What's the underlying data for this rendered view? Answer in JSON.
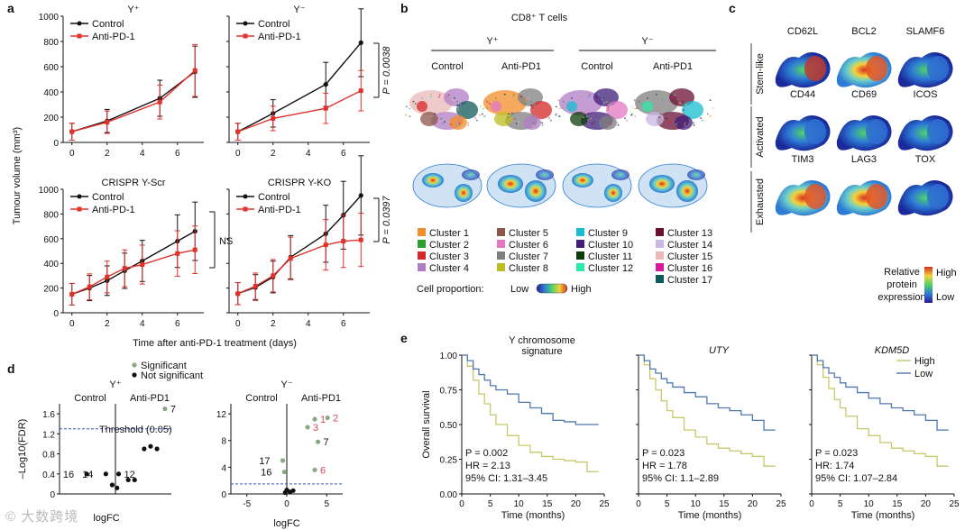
{
  "figure": {
    "panel_labels": [
      "a",
      "b",
      "c",
      "d",
      "e"
    ],
    "panel_a": {
      "ylabel": "Tumour volume (mm³)",
      "xlabel": "Time after anti-PD-1 treatment (days)",
      "series_names": [
        "Control",
        "Anti-PD-1"
      ],
      "colors": {
        "control": "#111111",
        "anti": "#e0312b"
      }
    },
    "panel_b": {
      "title": "CD8⁺ T cells",
      "group_yplus": "Y⁺",
      "group_yminus": "Y⁻",
      "col_labels": [
        "Control",
        "Anti-PD1",
        "Control",
        "Anti-PD1"
      ],
      "clusters": [
        {
          "name": "Cluster 1",
          "color": "#f28e2b"
        },
        {
          "name": "Cluster 2",
          "color": "#2ca02c"
        },
        {
          "name": "Cluster 3",
          "color": "#d62728"
        },
        {
          "name": "Cluster 4",
          "color": "#b07cc6"
        },
        {
          "name": "Cluster 5",
          "color": "#8c564b"
        },
        {
          "name": "Cluster 6",
          "color": "#e377c2"
        },
        {
          "name": "Cluster 7",
          "color": "#7f7f7f"
        },
        {
          "name": "Cluster 8",
          "color": "#bcbd22"
        },
        {
          "name": "Cluster 9",
          "color": "#17becf"
        },
        {
          "name": "Cluster 10",
          "color": "#3f1d7a"
        },
        {
          "name": "Cluster 11",
          "color": "#0b3d0b"
        },
        {
          "name": "Cluster 12",
          "color": "#2ee8a8"
        },
        {
          "name": "Cluster 13",
          "color": "#6b1033"
        },
        {
          "name": "Cluster 14",
          "color": "#c9b6e4"
        },
        {
          "name": "Cluster 15",
          "color": "#e9b8b8"
        },
        {
          "name": "Cluster 16",
          "color": "#d6199a"
        },
        {
          "name": "Cluster 17",
          "color": "#0f5a5a"
        }
      ],
      "proportion_label": "Cell proportion:",
      "low": "Low",
      "high": "High"
    },
    "panel_c": {
      "rows": [
        {
          "label": "Stem-like",
          "markers": [
            "CD62L",
            "BCL2",
            "SLAMF6"
          ]
        },
        {
          "label": "Activated",
          "markers": [
            "CD44",
            "CD69",
            "ICOS"
          ]
        },
        {
          "label": "Exhausted",
          "markers": [
            "TIM3",
            "LAG3",
            "TOX"
          ]
        }
      ],
      "legend_title": [
        "Relative",
        "protein",
        "expression"
      ],
      "high": "High",
      "low": "Low"
    },
    "panel_d": {
      "legend_sig": "Significant",
      "legend_nonsig": "Not significant",
      "ylabel_prefix": "–Log",
      "ylabel_sub": "10",
      "ylabel_suffix": "(FDR)",
      "xlabel": "logFC",
      "threshold_label": "Threshold (0.05)",
      "control": "Control",
      "anti": "Anti-PD1"
    },
    "panel_e": {
      "ylabel": "Overall survival",
      "xlabel": "Time (months)",
      "legend_high": "High",
      "legend_low": "Low",
      "colors": {
        "high": "#c8c86a",
        "low": "#4f78b0"
      }
    }
  },
  "chart_data": [
    {
      "id": "a-yplus",
      "type": "line",
      "title": "Y⁺",
      "x": [
        0,
        2,
        5,
        7
      ],
      "series": [
        {
          "name": "Control",
          "values": [
            85,
            170,
            350,
            560
          ]
        },
        {
          "name": "Anti-PD-1",
          "values": [
            85,
            160,
            320,
            570
          ]
        }
      ],
      "xlim": [
        -0.5,
        7.5
      ],
      "ylim": [
        0,
        1000
      ],
      "yticks": [
        0,
        200,
        400,
        600,
        800,
        1000
      ],
      "xticks": [
        0,
        2,
        4,
        6
      ]
    },
    {
      "id": "a-yminus",
      "type": "line",
      "title": "Y⁻",
      "x": [
        0,
        2,
        5,
        7
      ],
      "series": [
        {
          "name": "Control",
          "values": [
            85,
            230,
            460,
            790
          ]
        },
        {
          "name": "Anti-PD-1",
          "values": [
            85,
            190,
            270,
            410
          ]
        }
      ],
      "xlim": [
        -0.5,
        7.5
      ],
      "ylim": [
        0,
        1000
      ],
      "yticks": [],
      "xticks": [
        0,
        2,
        4,
        6
      ],
      "annotation": "P = 0.0038"
    },
    {
      "id": "a-scr",
      "type": "line",
      "title": "CRISPR Y-Scr",
      "x": [
        0,
        1,
        2,
        3,
        4,
        6,
        7
      ],
      "series": [
        {
          "name": "Control",
          "values": [
            150,
            200,
            260,
            340,
            420,
            580,
            660
          ]
        },
        {
          "name": "Anti-PD-1",
          "values": [
            150,
            210,
            290,
            360,
            390,
            480,
            510
          ]
        }
      ],
      "xlim": [
        -0.5,
        7.5
      ],
      "ylim": [
        0,
        1000
      ],
      "yticks": [
        0,
        200,
        400,
        600,
        800,
        1000
      ],
      "xticks": [
        0,
        2,
        4,
        6
      ],
      "annotation": "NS"
    },
    {
      "id": "a-ko",
      "type": "line",
      "title": "CRISPR Y-KO",
      "x": [
        0,
        1,
        2,
        3,
        5,
        6,
        7
      ],
      "series": [
        {
          "name": "Control",
          "values": [
            155,
            205,
            290,
            450,
            640,
            790,
            950
          ]
        },
        {
          "name": "Anti-PD-1",
          "values": [
            155,
            215,
            300,
            440,
            550,
            580,
            590
          ]
        }
      ],
      "xlim": [
        -0.5,
        7.5
      ],
      "ylim": [
        0,
        1000
      ],
      "yticks": [],
      "xticks": [
        0,
        2,
        4,
        6
      ],
      "annotation": "P = 0.0397"
    },
    {
      "id": "d-yplus",
      "type": "scatter",
      "title": "Y⁺",
      "ylim": [
        0,
        1.8
      ],
      "yticks": [
        0,
        0.4,
        0.8,
        1.2,
        1.6
      ],
      "points": [
        {
          "x": -1.8,
          "y": 0.4,
          "label": "16"
        },
        {
          "x": -0.6,
          "y": 0.4,
          "label": "14"
        },
        {
          "x": 0.2,
          "y": 0.4,
          "label": "12"
        },
        {
          "x": 0.8,
          "y": 0.28
        },
        {
          "x": 1.2,
          "y": 0.28
        },
        {
          "x": -0.2,
          "y": 0.18
        },
        {
          "x": 0.1,
          "y": 0.12
        },
        {
          "x": 1.8,
          "y": 0.9
        },
        {
          "x": 2.2,
          "y": 0.95
        },
        {
          "x": 2.6,
          "y": 0.9
        },
        {
          "x": 3.1,
          "y": 1.7,
          "label": "7",
          "significant": true
        }
      ],
      "threshold": 1.3
    },
    {
      "id": "d-yminus",
      "type": "scatter",
      "title": "Y⁻",
      "xlim": [
        -7,
        7
      ],
      "ylim": [
        0,
        13.5
      ],
      "xticks": [
        -5,
        0,
        5
      ],
      "yticks": [
        0,
        4,
        8,
        12
      ],
      "points": [
        {
          "x": 3.5,
          "y": 11.2,
          "label": "1",
          "significant": true
        },
        {
          "x": 5.1,
          "y": 11.4,
          "label": "2",
          "significant": true
        },
        {
          "x": 2.6,
          "y": 10,
          "label": "3",
          "significant": true
        },
        {
          "x": 3.9,
          "y": 7.8,
          "label": "7",
          "significant": true
        },
        {
          "x": -0.5,
          "y": 5,
          "label": "17",
          "significant": true
        },
        {
          "x": -0.3,
          "y": 3.3,
          "label": "16",
          "significant": true
        },
        {
          "x": 3.5,
          "y": 3.6,
          "label": "6",
          "significant": true
        },
        {
          "x": 0,
          "y": 0.6
        },
        {
          "x": 0.4,
          "y": 0.3
        },
        {
          "x": -0.2,
          "y": 0.2
        },
        {
          "x": 0.8,
          "y": 0.5
        }
      ],
      "threshold": 1.5
    },
    {
      "id": "e-ysig",
      "type": "line",
      "title": "Y chromosome signature",
      "xlim": [
        0,
        25
      ],
      "ylim": [
        0,
        1
      ],
      "xticks": [
        0,
        5,
        10,
        15,
        20,
        25
      ],
      "yticks": [
        0,
        0.25,
        0.5,
        0.75,
        1
      ],
      "stats": [
        "P = 0.002",
        "HR = 2.13",
        "95% CI: 1.31–3.45"
      ],
      "series": [
        {
          "name": "High",
          "x": [
            0,
            1,
            2,
            3,
            4,
            5,
            6,
            8,
            10,
            12,
            14,
            16,
            18,
            20,
            22,
            24
          ],
          "values": [
            1,
            0.92,
            0.82,
            0.72,
            0.65,
            0.57,
            0.5,
            0.42,
            0.35,
            0.3,
            0.27,
            0.25,
            0.24,
            0.23,
            0.16,
            0.16
          ]
        },
        {
          "name": "Low",
          "x": [
            0,
            1,
            2,
            3,
            4,
            5,
            6,
            8,
            10,
            12,
            14,
            16,
            18,
            20,
            22,
            24
          ],
          "values": [
            1,
            0.96,
            0.9,
            0.86,
            0.82,
            0.78,
            0.75,
            0.72,
            0.66,
            0.62,
            0.58,
            0.53,
            0.52,
            0.5,
            0.5,
            0.5
          ]
        }
      ]
    },
    {
      "id": "e-uty",
      "type": "line",
      "title": "UTY",
      "xlim": [
        0,
        25
      ],
      "ylim": [
        0,
        1
      ],
      "xticks": [
        0,
        5,
        10,
        15,
        20,
        25
      ],
      "stats": [
        "P = 0.023",
        "HR = 1.78",
        "95% CI: 1.1–2.89"
      ],
      "series": [
        {
          "name": "High",
          "x": [
            0,
            1,
            2,
            3,
            4,
            5,
            6,
            8,
            10,
            12,
            14,
            16,
            18,
            20,
            22,
            24
          ],
          "values": [
            1,
            0.93,
            0.83,
            0.75,
            0.67,
            0.6,
            0.55,
            0.46,
            0.41,
            0.36,
            0.33,
            0.31,
            0.29,
            0.27,
            0.2,
            0.2
          ]
        },
        {
          "name": "Low",
          "x": [
            0,
            1,
            2,
            3,
            4,
            5,
            6,
            8,
            10,
            12,
            14,
            16,
            18,
            20,
            22,
            24
          ],
          "values": [
            1,
            0.96,
            0.9,
            0.87,
            0.83,
            0.8,
            0.77,
            0.73,
            0.7,
            0.65,
            0.62,
            0.6,
            0.57,
            0.53,
            0.46,
            0.46
          ]
        }
      ]
    },
    {
      "id": "e-kdm5d",
      "type": "line",
      "title": "KDM5D",
      "xlim": [
        0,
        25
      ],
      "ylim": [
        0,
        1
      ],
      "xticks": [
        0,
        5,
        10,
        15,
        20,
        25
      ],
      "stats": [
        "P = 0.023",
        "HR: 1.74",
        "95% CI: 1.07–2.84"
      ],
      "series": [
        {
          "name": "High",
          "x": [
            0,
            1,
            2,
            3,
            4,
            5,
            6,
            8,
            10,
            12,
            14,
            16,
            18,
            20,
            22,
            24
          ],
          "values": [
            1,
            0.93,
            0.84,
            0.76,
            0.68,
            0.62,
            0.56,
            0.47,
            0.42,
            0.37,
            0.33,
            0.31,
            0.29,
            0.27,
            0.2,
            0.2
          ]
        },
        {
          "name": "Low",
          "x": [
            0,
            1,
            2,
            3,
            4,
            5,
            6,
            8,
            10,
            12,
            14,
            16,
            18,
            20,
            22,
            24
          ],
          "values": [
            1,
            0.96,
            0.91,
            0.87,
            0.84,
            0.8,
            0.77,
            0.73,
            0.69,
            0.65,
            0.62,
            0.6,
            0.57,
            0.53,
            0.46,
            0.46
          ]
        }
      ]
    }
  ],
  "watermark": "© 大数跨境"
}
